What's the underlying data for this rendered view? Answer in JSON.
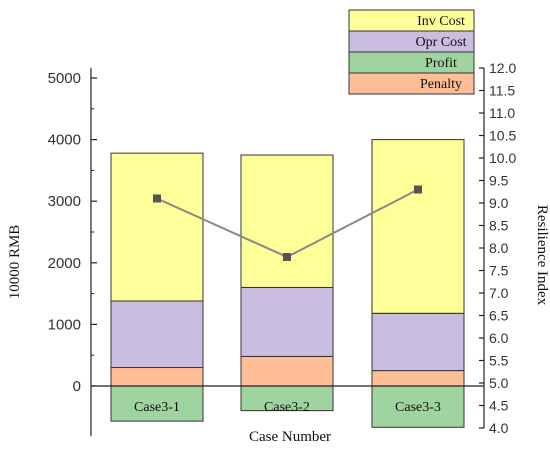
{
  "chart_data": {
    "type": "bar",
    "stacked": true,
    "categories": [
      "Case3-1",
      "Case3-2",
      "Case3-3"
    ],
    "xlabel": "Case Number",
    "ylabel": "10000 RMB",
    "ylabel_right": "Resilience Index",
    "ylim": [
      -600,
      5000
    ],
    "y_ticks": [
      "0",
      "1000",
      "2000",
      "3000",
      "4000",
      "5000"
    ],
    "ylim_right": [
      4.0,
      12.0
    ],
    "y_ticks_right": [
      "4.0",
      "4.5",
      "5.0",
      "5.5",
      "6.0",
      "6.5",
      "7.0",
      "7.5",
      "8.0",
      "8.5",
      "9.0",
      "9.5",
      "10.0",
      "10.5",
      "11.0",
      "11.5",
      "12.0"
    ],
    "series": [
      {
        "name": "Penalty",
        "color": "#ffbe96",
        "values": [
          300,
          480,
          250
        ]
      },
      {
        "name": "Opr Cost",
        "color": "#c9bde0",
        "values": [
          1080,
          1120,
          930
        ]
      },
      {
        "name": "Inv Cost",
        "color": "#ffff99",
        "values": [
          2400,
          2150,
          2820
        ]
      },
      {
        "name": "Profit",
        "color": "#9fd39f",
        "values": [
          -570,
          -400,
          -670
        ]
      }
    ],
    "legend_order": [
      "Inv Cost",
      "Opr Cost",
      "Profit",
      "Penalty"
    ],
    "legend_position": "top-right",
    "line_series": {
      "name": "Resilience Index",
      "axis": "right",
      "color": "#888888",
      "values": [
        9.1,
        7.8,
        9.3
      ]
    },
    "grid": false
  }
}
